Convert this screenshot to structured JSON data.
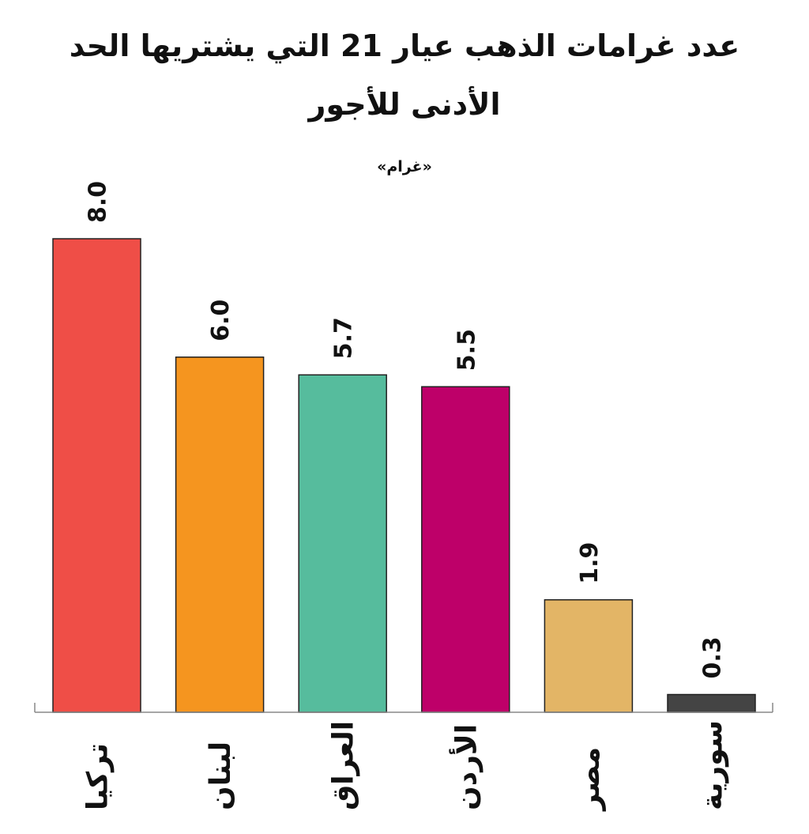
{
  "chart_data": {
    "type": "bar",
    "title_lines": [
      "عدد غرامات الذهب عيار 21 التي يشتريها الحد",
      "الأدنى للأجور"
    ],
    "subtitle": "«غرام»",
    "categories": [
      "تركيا",
      "لبنان",
      "العراق",
      "الأردن",
      "مصر",
      "سورية"
    ],
    "values": [
      8.0,
      6.0,
      5.7,
      5.5,
      1.9,
      0.3
    ],
    "value_labels": [
      "8.0",
      "6.0",
      "5.7",
      "5.5",
      "1.9",
      "0.3"
    ],
    "colors": [
      "#ef4e47",
      "#f5951f",
      "#56bc9d",
      "#be0069",
      "#e3b566",
      "#444444"
    ],
    "ylim": [
      0,
      8.0
    ],
    "grid": false,
    "legend": "none",
    "xlabel": "",
    "ylabel": ""
  }
}
